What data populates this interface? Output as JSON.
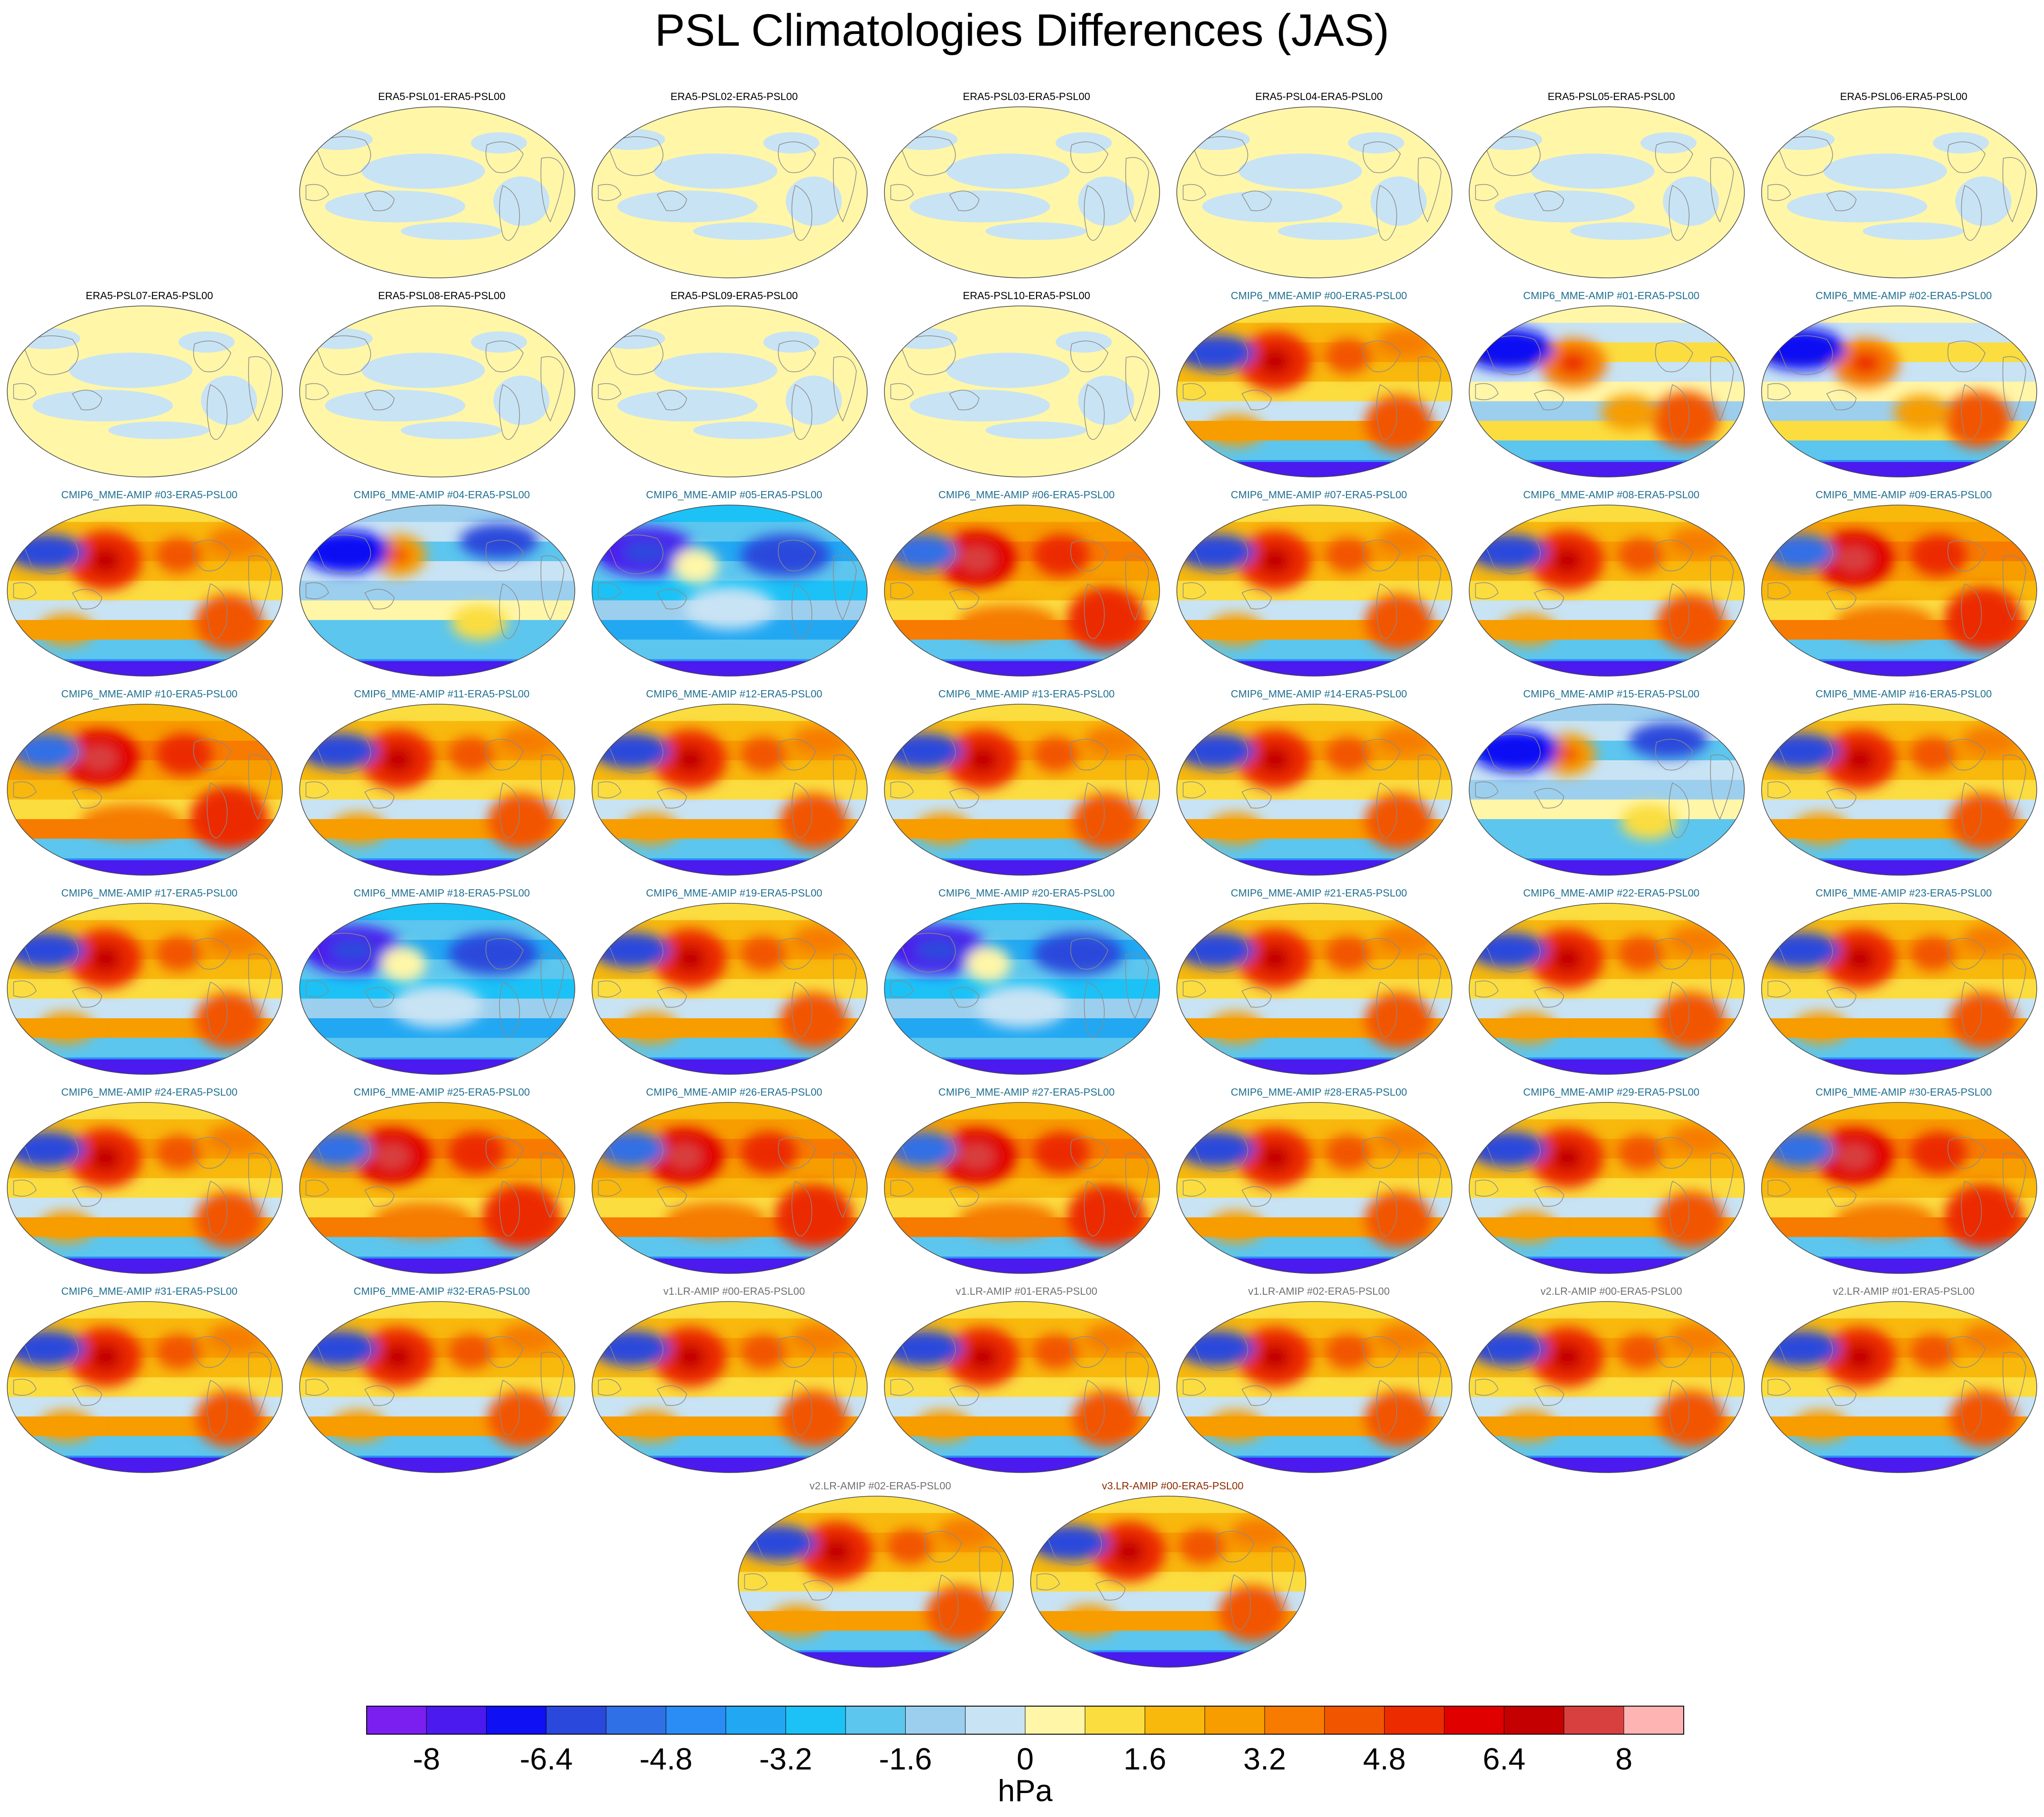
{
  "title": "PSL Climatologies Differences (JAS)",
  "chart_data": {
    "type": "map-grid",
    "title": "PSL Climatologies Differences (JAS)",
    "projection": "Robinson (global)",
    "colorbar": {
      "label": "hPa",
      "levels": [
        -8.8,
        -8,
        -7.2,
        -6.4,
        -5.6,
        -4.8,
        -4,
        -3.2,
        -2.4,
        -1.6,
        -0.8,
        0,
        0.8,
        1.6,
        2.4,
        3.2,
        4,
        4.8,
        5.6,
        6.4,
        7.2,
        8,
        8.8
      ],
      "tick_labels": [
        "-8",
        "-6.4",
        "-4.8",
        "-3.2",
        "-1.6",
        "0",
        "1.6",
        "3.2",
        "4.8",
        "6.4",
        "8"
      ],
      "colors": [
        "#7a1fef",
        "#4b1aee",
        "#1010f4",
        "#2b48dc",
        "#3070e6",
        "#2a8cf5",
        "#22a8f2",
        "#1cc2f6",
        "#5cc6ee",
        "#9ccfee",
        "#c8e3f4",
        "#fff6a8",
        "#fbdd40",
        "#f8b80c",
        "#f79d00",
        "#f67b00",
        "#f25500",
        "#ec2c00",
        "#e00000",
        "#c40000",
        "#d84040",
        "#ffb4b4"
      ]
    },
    "panels": [
      {
        "label": "ERA5-PSL01-ERA5-PSL00",
        "group": "era5",
        "style": "era5"
      },
      {
        "label": "ERA5-PSL02-ERA5-PSL00",
        "group": "era5",
        "style": "era5"
      },
      {
        "label": "ERA5-PSL03-ERA5-PSL00",
        "group": "era5",
        "style": "era5"
      },
      {
        "label": "ERA5-PSL04-ERA5-PSL00",
        "group": "era5",
        "style": "era5"
      },
      {
        "label": "ERA5-PSL05-ERA5-PSL00",
        "group": "era5",
        "style": "era5"
      },
      {
        "label": "ERA5-PSL06-ERA5-PSL00",
        "group": "era5",
        "style": "era5"
      },
      {
        "label": "ERA5-PSL07-ERA5-PSL00",
        "group": "era5",
        "style": "era5"
      },
      {
        "label": "ERA5-PSL08-ERA5-PSL00",
        "group": "era5",
        "style": "era5"
      },
      {
        "label": "ERA5-PSL09-ERA5-PSL00",
        "group": "era5",
        "style": "era5"
      },
      {
        "label": "ERA5-PSL10-ERA5-PSL00",
        "group": "era5",
        "style": "era5"
      },
      {
        "label": "CMIP6_MME-AMIP  #00-ERA5-PSL00",
        "group": "cmip6",
        "style": "warm"
      },
      {
        "label": "CMIP6_MME-AMIP  #01-ERA5-PSL00",
        "group": "cmip6",
        "style": "mixed"
      },
      {
        "label": "CMIP6_MME-AMIP  #02-ERA5-PSL00",
        "group": "cmip6",
        "style": "mixed"
      },
      {
        "label": "CMIP6_MME-AMIP  #03-ERA5-PSL00",
        "group": "cmip6",
        "style": "warm"
      },
      {
        "label": "CMIP6_MME-AMIP  #04-ERA5-PSL00",
        "group": "cmip6",
        "style": "cool"
      },
      {
        "label": "CMIP6_MME-AMIP  #05-ERA5-PSL00",
        "group": "cmip6",
        "style": "cold"
      },
      {
        "label": "CMIP6_MME-AMIP  #06-ERA5-PSL00",
        "group": "cmip6",
        "style": "hot"
      },
      {
        "label": "CMIP6_MME-AMIP  #07-ERA5-PSL00",
        "group": "cmip6",
        "style": "warm"
      },
      {
        "label": "CMIP6_MME-AMIP  #08-ERA5-PSL00",
        "group": "cmip6",
        "style": "warm"
      },
      {
        "label": "CMIP6_MME-AMIP  #09-ERA5-PSL00",
        "group": "cmip6",
        "style": "hot"
      },
      {
        "label": "CMIP6_MME-AMIP  #10-ERA5-PSL00",
        "group": "cmip6",
        "style": "hot"
      },
      {
        "label": "CMIP6_MME-AMIP  #11-ERA5-PSL00",
        "group": "cmip6",
        "style": "warm"
      },
      {
        "label": "CMIP6_MME-AMIP  #12-ERA5-PSL00",
        "group": "cmip6",
        "style": "warm"
      },
      {
        "label": "CMIP6_MME-AMIP  #13-ERA5-PSL00",
        "group": "cmip6",
        "style": "warm"
      },
      {
        "label": "CMIP6_MME-AMIP  #14-ERA5-PSL00",
        "group": "cmip6",
        "style": "warm"
      },
      {
        "label": "CMIP6_MME-AMIP  #15-ERA5-PSL00",
        "group": "cmip6",
        "style": "cool"
      },
      {
        "label": "CMIP6_MME-AMIP  #16-ERA5-PSL00",
        "group": "cmip6",
        "style": "warm"
      },
      {
        "label": "CMIP6_MME-AMIP  #17-ERA5-PSL00",
        "group": "cmip6",
        "style": "warm"
      },
      {
        "label": "CMIP6_MME-AMIP  #18-ERA5-PSL00",
        "group": "cmip6",
        "style": "cold"
      },
      {
        "label": "CMIP6_MME-AMIP  #19-ERA5-PSL00",
        "group": "cmip6",
        "style": "warm"
      },
      {
        "label": "CMIP6_MME-AMIP  #20-ERA5-PSL00",
        "group": "cmip6",
        "style": "cold"
      },
      {
        "label": "CMIP6_MME-AMIP  #21-ERA5-PSL00",
        "group": "cmip6",
        "style": "warm"
      },
      {
        "label": "CMIP6_MME-AMIP  #22-ERA5-PSL00",
        "group": "cmip6",
        "style": "warm"
      },
      {
        "label": "CMIP6_MME-AMIP  #23-ERA5-PSL00",
        "group": "cmip6",
        "style": "warm"
      },
      {
        "label": "CMIP6_MME-AMIP  #24-ERA5-PSL00",
        "group": "cmip6",
        "style": "warm"
      },
      {
        "label": "CMIP6_MME-AMIP  #25-ERA5-PSL00",
        "group": "cmip6",
        "style": "hot"
      },
      {
        "label": "CMIP6_MME-AMIP  #26-ERA5-PSL00",
        "group": "cmip6",
        "style": "hot"
      },
      {
        "label": "CMIP6_MME-AMIP  #27-ERA5-PSL00",
        "group": "cmip6",
        "style": "hot"
      },
      {
        "label": "CMIP6_MME-AMIP  #28-ERA5-PSL00",
        "group": "cmip6",
        "style": "warm"
      },
      {
        "label": "CMIP6_MME-AMIP  #29-ERA5-PSL00",
        "group": "cmip6",
        "style": "warm"
      },
      {
        "label": "CMIP6_MME-AMIP  #30-ERA5-PSL00",
        "group": "cmip6",
        "style": "hot"
      },
      {
        "label": "CMIP6_MME-AMIP  #31-ERA5-PSL00",
        "group": "cmip6",
        "style": "warm"
      },
      {
        "label": "CMIP6_MME-AMIP  #32-ERA5-PSL00",
        "group": "cmip6",
        "style": "warm"
      },
      {
        "label": "v1.LR-AMIP  #00-ERA5-PSL00",
        "group": "v1",
        "style": "warm"
      },
      {
        "label": "v1.LR-AMIP  #01-ERA5-PSL00",
        "group": "v1",
        "style": "warm"
      },
      {
        "label": "v1.LR-AMIP  #02-ERA5-PSL00",
        "group": "v1",
        "style": "warm"
      },
      {
        "label": "v2.LR-AMIP  #00-ERA5-PSL00",
        "group": "v2",
        "style": "warm"
      },
      {
        "label": "v2.LR-AMIP  #01-ERA5-PSL00",
        "group": "v2",
        "style": "warm"
      },
      {
        "label": "v2.LR-AMIP  #02-ERA5-PSL00",
        "group": "v2",
        "style": "warm"
      },
      {
        "label": "v3.LR-AMIP  #00-ERA5-PSL00",
        "group": "v3",
        "style": "warm"
      }
    ]
  }
}
